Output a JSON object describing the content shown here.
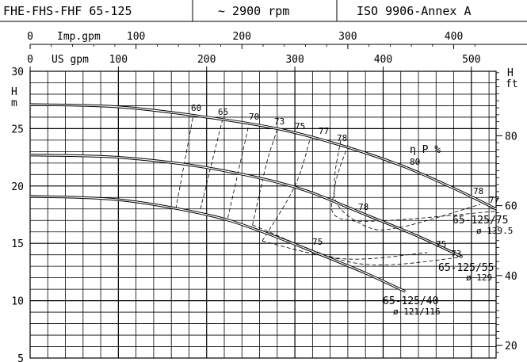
{
  "header": {
    "model": "FHE-FHS-FHF 65-125",
    "speed": "~ 2900 rpm",
    "standard": "ISO 9906-Annex A"
  },
  "chart_data": {
    "type": "line",
    "top_axis": {
      "label": "Imp.gpm",
      "ticks": [
        "0",
        "100",
        "200",
        "300",
        "400"
      ],
      "values": [
        0,
        100,
        200,
        300,
        400
      ],
      "range": [
        0,
        440
      ]
    },
    "bottom_axis": {
      "label": "US gpm",
      "ticks": [
        "0",
        "100",
        "200",
        "300",
        "400",
        "500"
      ],
      "values": [
        0,
        100,
        200,
        300,
        400,
        500
      ],
      "range": [
        0,
        528
      ]
    },
    "left_axis": {
      "label_top": "H",
      "label_bottom": "m",
      "ticks": [
        "5",
        "10",
        "15",
        "20",
        "25",
        "30"
      ],
      "values": [
        5,
        10,
        15,
        20,
        25,
        30
      ],
      "range": [
        5,
        30
      ]
    },
    "right_axis": {
      "label_top": "H",
      "label_bottom": "ft",
      "ticks": [
        "20",
        "40",
        "60",
        "80"
      ],
      "values": [
        20,
        40,
        60,
        80
      ]
    },
    "grid": true,
    "efficiency_label": "η P %",
    "series": [
      {
        "name": "65-125/75",
        "diameter": "ø 139.5",
        "x": [
          0,
          100,
          200,
          280,
          350,
          420,
          480,
          528
        ],
        "y": [
          27.1,
          26.9,
          26.0,
          25.0,
          23.6,
          21.8,
          19.8,
          18.0
        ]
      },
      {
        "name": "65-125/55",
        "diameter": "ø 129",
        "x": [
          0,
          100,
          200,
          300,
          380,
          440,
          490
        ],
        "y": [
          22.7,
          22.5,
          21.6,
          19.9,
          17.5,
          15.6,
          13.8
        ]
      },
      {
        "name": "65-125/40",
        "diameter": "ø 121/116",
        "x": [
          0,
          100,
          200,
          260,
          320,
          380,
          425
        ],
        "y": [
          19.1,
          18.8,
          17.5,
          16.1,
          14.3,
          12.4,
          10.8
        ]
      }
    ],
    "efficiency_contours": [
      {
        "label": "60",
        "x": [
          165,
          185
        ],
        "y": [
          18.0,
          26.2
        ]
      },
      {
        "label": "65",
        "x": [
          193,
          218
        ],
        "y": [
          18.0,
          25.8
        ]
      },
      {
        "label": "70",
        "x": [
          224,
          248
        ],
        "y": [
          17.2,
          25.4
        ]
      },
      {
        "label": "73",
        "x": [
          252,
          268,
          280
        ],
        "y": [
          16.6,
          22.0,
          24.9
        ],
        "label2": "73",
        "end": [
          490,
          13.8
        ]
      },
      {
        "label": "75",
        "x": [
          263,
          300,
          318
        ],
        "y": [
          15.2,
          20.0,
          24.3
        ],
        "label2": "75",
        "end": [
          450,
          14.2
        ]
      },
      {
        "label": "77",
        "x": [
          352,
          345,
          360,
          528
        ],
        "y": [
          24.0,
          20.0,
          17.0,
          17.8
        ]
      },
      {
        "label": "78",
        "x": [
          360,
          345,
          380,
          420,
          510
        ],
        "y": [
          23.6,
          19.0,
          16.5,
          16.4,
          18.4
        ],
        "label2": "78"
      },
      {
        "label": "80"
      }
    ]
  }
}
